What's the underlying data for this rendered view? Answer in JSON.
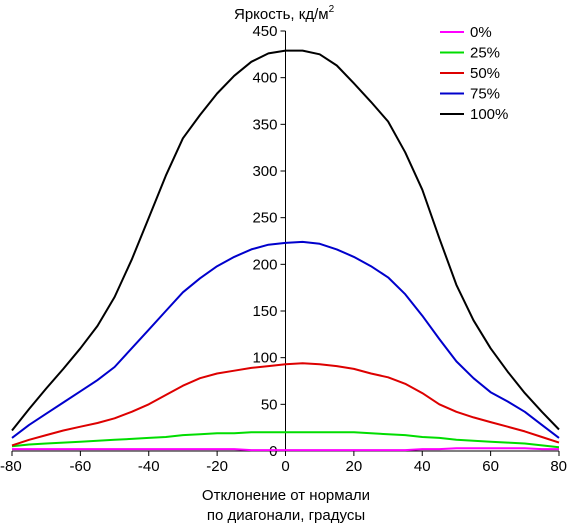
{
  "chart_data": {
    "type": "line",
    "title": "",
    "ylabel_prefix": "Яркость, кд/м",
    "ylabel_sup": "2",
    "xlabel_line1": "Отклонение от нормали",
    "xlabel_line2": "по диагонали, градусы",
    "xlim": [
      -80,
      80
    ],
    "ylim": [
      0,
      450
    ],
    "xticks": [
      -80,
      -60,
      -40,
      -20,
      0,
      20,
      40,
      60,
      80
    ],
    "yticks": [
      0,
      50,
      100,
      150,
      200,
      250,
      300,
      350,
      400,
      450
    ],
    "grid": false,
    "legend_position": "top-right",
    "x": [
      -80,
      -75,
      -70,
      -65,
      -60,
      -55,
      -50,
      -45,
      -40,
      -35,
      -30,
      -25,
      -20,
      -15,
      -10,
      -5,
      0,
      5,
      10,
      15,
      20,
      25,
      30,
      35,
      40,
      45,
      50,
      55,
      60,
      65,
      70,
      75,
      80
    ],
    "series": [
      {
        "name": "0%",
        "color": "#ff00ff",
        "values": [
          2,
          2,
          2,
          2,
          2,
          2,
          2,
          2,
          2,
          2,
          2,
          2,
          2,
          2,
          1,
          1,
          1,
          1,
          1,
          1,
          1,
          1,
          1,
          1,
          2,
          2,
          3,
          3,
          3,
          3,
          3,
          2,
          2
        ]
      },
      {
        "name": "25%",
        "color": "#00dd00",
        "values": [
          5,
          7,
          8,
          9,
          10,
          11,
          12,
          13,
          14,
          15,
          17,
          18,
          19,
          19,
          20,
          20,
          20,
          20,
          20,
          20,
          20,
          19,
          18,
          17,
          15,
          14,
          12,
          11,
          10,
          9,
          8,
          6,
          4
        ]
      },
      {
        "name": "50%",
        "color": "#dd0000",
        "values": [
          6,
          12,
          17,
          22,
          26,
          30,
          35,
          42,
          50,
          60,
          70,
          78,
          83,
          86,
          89,
          91,
          93,
          94,
          93,
          91,
          88,
          83,
          79,
          72,
          62,
          50,
          42,
          36,
          31,
          26,
          21,
          15,
          9
        ]
      },
      {
        "name": "75%",
        "color": "#0000cc",
        "values": [
          14,
          28,
          40,
          52,
          64,
          76,
          90,
          110,
          130,
          150,
          170,
          185,
          198,
          208,
          216,
          221,
          223,
          224,
          222,
          216,
          208,
          198,
          186,
          168,
          145,
          120,
          96,
          78,
          63,
          53,
          42,
          28,
          14
        ]
      },
      {
        "name": "100%",
        "color": "#000000",
        "values": [
          22,
          45,
          67,
          88,
          110,
          134,
          165,
          205,
          250,
          295,
          335,
          360,
          383,
          402,
          417,
          426,
          429,
          429,
          425,
          413,
          394,
          374,
          353,
          320,
          280,
          228,
          178,
          140,
          110,
          85,
          62,
          42,
          23
        ]
      }
    ]
  }
}
